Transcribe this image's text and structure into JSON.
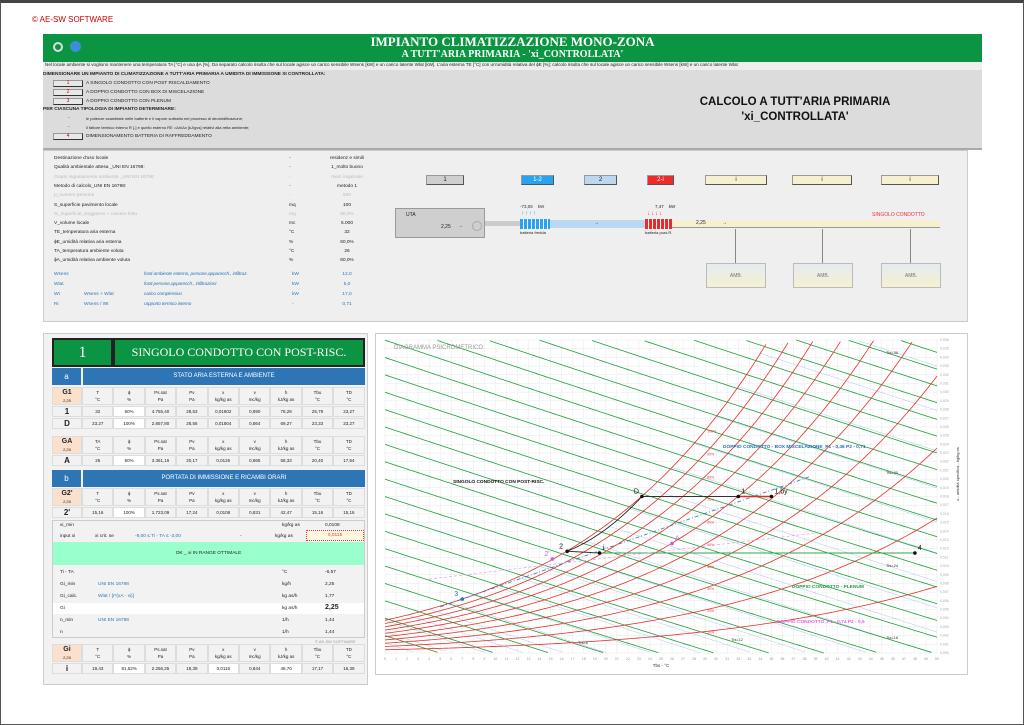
{
  "copyright": "© AE-SW SOFTWARE",
  "header": {
    "title": "IMPIANTO CLIMATIZZAZIONE MONO-ZONA",
    "subtitle": "A TUTT'ARIA PRIMARIA - 'xi_CONTROLLATA'"
  },
  "intro": "Nel locale ambiente si vogliono mantenere una temperatura TA [°C] e una ϕA [%]. Da separato calcolo risulta che sul locale agisce un carico sensibile Wsens [kW] e un carico latente Wlat [kW]. L'aria esterna TE [°C] con un'umidità relativa del ϕE [%]; calcolo risulta che sul locale agisce un carico sensibile Wsens [kW] e un carico latente Wlat",
  "desc": {
    "heading1": "DIMENSIONARE UN IMPIANTO DI CLIMATIZZAZIONE A TUTT'ARIA PRIMARIA A UMIDITA DI IMMISSIONE XI CONTROLLATA:",
    "options": [
      {
        "btn": "1",
        "label": "A SINGOLO CONDOTTO CON POST RISCALDAMENTO"
      },
      {
        "btn": "2",
        "label": "A DOPPIO CONDOTTO CON BOX DI MISCELAZIONE"
      },
      {
        "btn": "3",
        "label": "A DOPPIO CONDOTTO CON PLENUM"
      }
    ],
    "heading2": "PER CIASCUNA TIPOLOGIA DI IMPIANTO DETERMINARE:",
    "bullets": [
      "le potenze scambiate nelle batterie e il vapore sottratto nel processo di deumidificazione;",
      "il fattore termico interno R [-] e quello esterno RE =Δh/Δx [kJ/gvs] relativi alla retta ambiente;"
    ],
    "dash": "-",
    "btn4": "4",
    "btn4_label": "DIMENSIONAMENTO BATTERIA DI RAFFREDDAMENTO"
  },
  "calc_title": {
    "line1": "CALCOLO A TUTT'ARIA PRIMARIA",
    "line2": "'xi_CONTROLLATA'"
  },
  "params": [
    {
      "label": "Destinazione d'uso locale",
      "unit": "-",
      "value": "residenz e simili",
      "dim": false
    },
    {
      "label": "Qualità ambientale attesa _UNI EN 16798:",
      "unit": "-",
      "value": "1_molto buono",
      "dim": false
    },
    {
      "label": "Grado inquinamento ambiente _UNI EN 16798:",
      "unit": "-",
      "value": "med. inquinato",
      "dim": true
    },
    {
      "label": "Metodo di calcolo_UNI EN 16798:",
      "unit": "-",
      "value": "metodo 1",
      "dim": false
    },
    {
      "label": "p_numero persone",
      "unit": "-",
      "value": "500",
      "dim": true
    },
    {
      "label": "S_superficie pavimento locale",
      "unit": "mq",
      "value": "100",
      "dim": false
    },
    {
      "label": "%_superficie_soggiorno + camere letto",
      "unit": "mq",
      "value": "80,0%",
      "dim": true
    },
    {
      "label": "V_volume locale",
      "unit": "mc",
      "value": "5.000",
      "dim": false
    },
    {
      "label": "TE_temperatura aria esterna",
      "unit": "°C",
      "value": "32",
      "dim": false
    },
    {
      "label": "ϕE_umidità relativa aria esterna",
      "unit": "%",
      "value": "60,0%",
      "dim": false
    },
    {
      "label": "TA_temperatura ambiente voluta",
      "unit": "°C",
      "value": "26",
      "dim": false
    },
    {
      "label": "ϕA_umidità relativa ambiente voluta",
      "unit": "%",
      "value": "60,0%",
      "dim": false
    }
  ],
  "loads": [
    {
      "label": "Wsens",
      "formula": "",
      "note": "fonti ambiente esterno, persone,apparecch., infiltraz.",
      "unit": "kW",
      "value": "12,0"
    },
    {
      "label": "Wlat",
      "formula": "",
      "note": "fonti persone,apparecch., infiltrazioni",
      "unit": "kW",
      "value": "5,0"
    },
    {
      "label": "Wt",
      "formula": "Wsens + Wlat",
      "note": "carico complessivo",
      "unit": "kW",
      "value": "17,0"
    },
    {
      "label": "Ri",
      "formula": "Wsens / Wt",
      "note": "rapporto termico interno",
      "unit": "-",
      "value": "0,71"
    }
  ],
  "schema": {
    "btn_1": "1",
    "btn_12": "1-2",
    "btn_2": "2",
    "btn_2i": "2-i",
    "btn_i": [
      "i",
      "i",
      "i"
    ],
    "uta": "UTA",
    "flow1": "2,25",
    "flow2": "2,25",
    "arrow": "→",
    "cool_power": "-73,06",
    "heat_power": "7,47",
    "unit": "kW",
    "cool_label": "batteria fredda",
    "heat_label": "batteria post-R.",
    "duct_label": "SINGOLO CONDOTTO",
    "amb": [
      "AMB.",
      "AMB.",
      "AMB."
    ]
  },
  "panel": {
    "num": "1",
    "title": "SINGOLO CONDOTTO CON POST-RISC.",
    "band_a": {
      "letter": "a",
      "title": "STATO ARIA ESTERNA E AMBIENTE"
    },
    "band_b": {
      "letter": "b",
      "title": "PORTATA DI IMMISSIONE E RICAMBI ORARI"
    },
    "units": [
      "°C",
      "%",
      "Pa",
      "Pa",
      "kg/kg as",
      "mc/kg",
      "kJ/kg as",
      "°C",
      "°C"
    ],
    "blocks": [
      {
        "g": "G1",
        "gv": "2,25",
        "cols": [
          "T",
          "ϕ",
          "Ps.sat",
          "Pv",
          "x",
          "v",
          "h",
          "Tbu",
          "TD"
        ],
        "rows": [
          {
            "k": "1",
            "v": [
              "32",
              "60%",
              "4.755,40",
              "28,53",
              "0,01802",
              "0,890",
              "78,28",
              "25,79",
              "23,27"
            ]
          },
          {
            "k": "D",
            "v": [
              "23,27",
              "100%",
              "2.857,80",
              "28,56",
              "0,01804",
              "0,864",
              "69,27",
              "23,33",
              "23,27"
            ]
          }
        ]
      },
      {
        "g": "GA",
        "gv": "2,25",
        "cols": [
          "TA",
          "ϕ",
          "Ps.sat",
          "Pv",
          "x",
          "v",
          "h",
          "Tbu",
          "TD"
        ],
        "rows": [
          {
            "k": "A",
            "v": [
              "26",
              "60%",
              "3.361,16",
              "20,17",
              "0,0126",
              "0,865",
              "58,33",
              "20,40",
              "17,64"
            ]
          }
        ]
      },
      {
        "g": "G2'",
        "gv": "2,25",
        "cols": [
          "T",
          "ϕ",
          "Ps.sat",
          "Pv",
          "x",
          "v",
          "h",
          "Tbu",
          "TD"
        ],
        "rows": [
          {
            "k": "2'",
            "v": [
              "15,16",
              "100%",
              "1.723,09",
              "17,24",
              "0,0108",
              "0,831",
              "42,47",
              "15,16",
              "15,16"
            ]
          }
        ]
      },
      {
        "g": "Gi",
        "gv": "2,25",
        "cols": [
          "T",
          "ϕ",
          "Ps.sat",
          "Pv",
          "x",
          "v",
          "h",
          "Tbu",
          "TD"
        ],
        "rows": [
          {
            "k": "i",
            "v": [
              "19,43",
              "81,52%",
              "2.256,25",
              "18,39",
              "0,0115",
              "0,844",
              "48,70",
              "17,17",
              "16,39"
            ]
          }
        ]
      }
    ],
    "xi_min": {
      "label": "xi_min",
      "unit": "kg/kg as",
      "value": "0,0108"
    },
    "input_xi": {
      "label": "input xi",
      "crit": "xi crit. se",
      "range": "-9,00  ≤  Ti - TA  ≤  -3,00",
      "dash": "-",
      "unit": "kg/kg as",
      "value": "0,0115"
    },
    "ok": "OK _ xi IN RANGE OTTIMALE",
    "rows": [
      {
        "label": "Ti - TA",
        "note": "",
        "unit": "°C",
        "value": "-6,57"
      },
      {
        "label": "Gi_min",
        "note": "UNI EN 16798",
        "unit": "kg/h",
        "value": "2,25"
      },
      {
        "label": "Gi_calc.",
        "note": "Wlat / [r*(xA - xi)]",
        "unit": "kg as/h",
        "value": "1,77"
      },
      {
        "label": "Gi",
        "note": "",
        "unit": "kg as/h",
        "value": "2,25"
      },
      {
        "label": "n_min",
        "note": "UNI EN 16798",
        "unit": "1/h",
        "value": "1,44"
      },
      {
        "label": "n",
        "note": "",
        "unit": "1/h",
        "value": "1,44"
      }
    ],
    "copy": "© AE-SW SOFTWARE"
  },
  "chart_data": {
    "type": "scatter",
    "title": "DIAGRAMMA PSICROMETRICO",
    "xlabel": "Tbs - °C",
    "ylabel": "x - umidità specifica - kg/kg as",
    "xlim": [
      0,
      50
    ],
    "ylim": [
      0,
      0.036
    ],
    "rh_curves": [
      10,
      20,
      30,
      40,
      50,
      60,
      70,
      80,
      90,
      100
    ],
    "rh_labels": [
      "10%",
      "20%",
      "30%",
      "40%",
      "50%",
      "60%",
      "70%",
      "80%",
      "90%",
      "100%"
    ],
    "points": [
      {
        "name": "1",
        "T": 32,
        "x": 0.018
      },
      {
        "name": "D",
        "T": 23.27,
        "x": 0.018
      },
      {
        "name": "1,by",
        "T": 35,
        "x": 0.018
      },
      {
        "name": "2",
        "T": 16.5,
        "x": 0.0117
      },
      {
        "name": "2'",
        "T": 15.16,
        "x": 0.0108
      },
      {
        "name": "i",
        "T": 19.43,
        "x": 0.0115
      },
      {
        "name": "A",
        "T": 26,
        "x": 0.0126
      },
      {
        "name": "4",
        "T": 48,
        "x": 0.0115
      },
      {
        "name": "3",
        "T": 7,
        "x": 0.0062
      }
    ],
    "annotations": [
      "SINGOLO CONDOTTO CON POST-RISC.",
      "DOPPIO CONDOTTO - BOX MISCELAZIONE_P1 - 0,46 P2 - 0,71",
      "DOPPIO CONDOTTO - PLENUM",
      "DOPPIO CONDOTTO_P1 - 0,74 P2 - 0,5"
    ],
    "tbu_labels": [
      "Tbu-6",
      "Tbu-12",
      "Tbu-18",
      "Tbu-24",
      "Tbu-30",
      "Tbu-36"
    ],
    "colors": {
      "rh": "#e8302a",
      "h": "#1e9e3a",
      "tbu": "#a8c8e8"
    }
  }
}
